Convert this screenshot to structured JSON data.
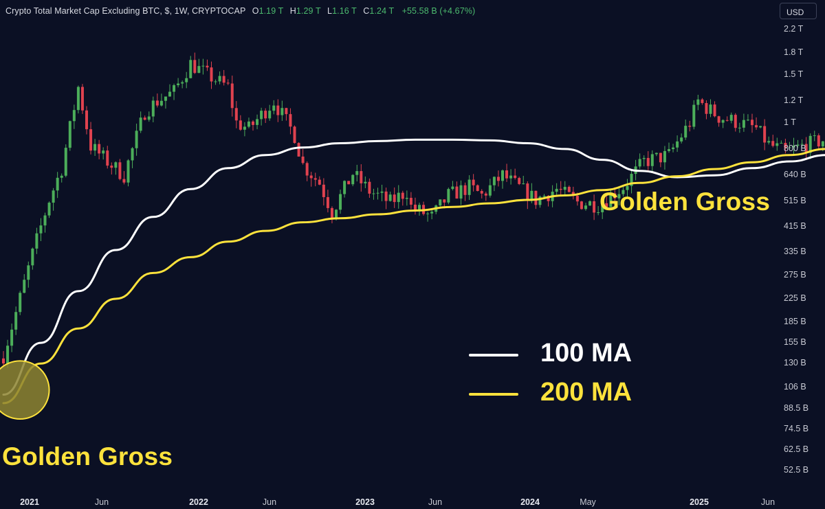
{
  "header": {
    "symbol": "Crypto Total Market Cap Excluding BTC, $, 1W, CRYPTOCAP",
    "open_key": "O",
    "open": "1.19 T",
    "high_key": "H",
    "high": "1.29 T",
    "low_key": "L",
    "low": "1.16 T",
    "close_key": "C",
    "close": "1.24 T",
    "change": "+55.58 B (+4.67%)"
  },
  "currency_button": "USD",
  "colors": {
    "background": "#0b1024",
    "up": "#4cae5a",
    "down": "#e0424f",
    "ma100": "#ffffff",
    "ma200": "#fde23c",
    "highlight_fill": "#8e8531",
    "highlight_stroke": "#fde23c"
  },
  "annotations": {
    "left_label": "Golden Gross",
    "right_label": "Golden Gross"
  },
  "legend": [
    {
      "label": "100 MA",
      "color": "#ffffff"
    },
    {
      "label": "200 MA",
      "color": "#fde23c"
    }
  ],
  "chart_data": {
    "type": "candlestick",
    "title": "Crypto Total Market Cap Excluding BTC, $, 1W, CRYPTOCAP",
    "y_scale": "log",
    "y_unit": "USD",
    "y_ticks": [
      "2.2 T",
      "1.8 T",
      "1.5 T",
      "1.2 T",
      "1 T",
      "800 B",
      "640 B",
      "515 B",
      "415 B",
      "335 B",
      "275 B",
      "225 B",
      "185 B",
      "155 B",
      "130 B",
      "106 B",
      "88.5 B",
      "74.5 B",
      "62.5 B",
      "52.5 B"
    ],
    "x_ticks": [
      {
        "label": "2021",
        "bold": true
      },
      {
        "label": "Jun",
        "bold": false
      },
      {
        "label": "2022",
        "bold": true
      },
      {
        "label": "Jun",
        "bold": false
      },
      {
        "label": "2023",
        "bold": true
      },
      {
        "label": "Jun",
        "bold": false
      },
      {
        "label": "2024",
        "bold": true
      },
      {
        "label": "May",
        "bold": false
      },
      {
        "label": "2025",
        "bold": true
      },
      {
        "label": "Jun",
        "bold": false
      }
    ],
    "price_path": [
      [
        "2020-12-28",
        140
      ],
      [
        "2021-01-18",
        200
      ],
      [
        "2021-02-15",
        330
      ],
      [
        "2021-03-15",
        520
      ],
      [
        "2021-04-05",
        680
      ],
      [
        "2021-05-03",
        1350
      ],
      [
        "2021-05-24",
        820
      ],
      [
        "2021-06-21",
        720
      ],
      [
        "2021-07-19",
        640
      ],
      [
        "2021-08-23",
        1100
      ],
      [
        "2021-09-13",
        1200
      ],
      [
        "2021-10-11",
        1300
      ],
      [
        "2021-11-08",
        1650
      ],
      [
        "2021-12-06",
        1500
      ],
      [
        "2022-01-10",
        1350
      ],
      [
        "2022-01-24",
        1000
      ],
      [
        "2022-02-14",
        950
      ],
      [
        "2022-03-28",
        1200
      ],
      [
        "2022-05-02",
        900
      ],
      [
        "2022-05-16",
        700
      ],
      [
        "2022-06-13",
        600
      ],
      [
        "2022-07-04",
        470
      ],
      [
        "2022-08-08",
        650
      ],
      [
        "2022-09-05",
        560
      ],
      [
        "2022-10-10",
        510
      ],
      [
        "2022-11-07",
        560
      ],
      [
        "2022-11-14",
        490
      ],
      [
        "2022-12-19",
        450
      ],
      [
        "2023-01-16",
        540
      ],
      [
        "2023-02-20",
        580
      ],
      [
        "2023-03-13",
        540
      ],
      [
        "2023-04-17",
        640
      ],
      [
        "2023-06-12",
        520
      ],
      [
        "2023-07-17",
        570
      ],
      [
        "2023-08-21",
        510
      ],
      [
        "2023-09-25",
        500
      ],
      [
        "2023-11-06",
        580
      ],
      [
        "2023-12-11",
        720
      ],
      [
        "2024-01-22",
        760
      ],
      [
        "2024-02-26",
        1000
      ],
      [
        "2024-03-11",
        1200
      ],
      [
        "2024-04-15",
        1050
      ],
      [
        "2024-05-20",
        1000
      ],
      [
        "2024-06-17",
        950
      ],
      [
        "2024-07-08",
        830
      ],
      [
        "2024-08-05",
        780
      ],
      [
        "2024-09-09",
        830
      ],
      [
        "2024-10-14",
        870
      ],
      [
        "2024-11-11",
        1150
      ],
      [
        "2024-12-09",
        1500
      ],
      [
        "2024-12-30",
        1400
      ],
      [
        "2025-01-20",
        1450
      ],
      [
        "2025-02-03",
        1200
      ],
      [
        "2025-02-17",
        1240
      ]
    ],
    "series": [
      {
        "name": "100 MA",
        "points": [
          [
            "2020-12-28",
            100
          ],
          [
            "2021-03-01",
            155
          ],
          [
            "2021-05-03",
            240
          ],
          [
            "2021-07-05",
            340
          ],
          [
            "2021-09-06",
            450
          ],
          [
            "2021-11-08",
            570
          ],
          [
            "2022-01-10",
            680
          ],
          [
            "2022-03-14",
            760
          ],
          [
            "2022-05-16",
            810
          ],
          [
            "2022-07-18",
            840
          ],
          [
            "2022-09-19",
            855
          ],
          [
            "2022-11-21",
            865
          ],
          [
            "2023-01-23",
            865
          ],
          [
            "2023-03-27",
            860
          ],
          [
            "2023-05-29",
            840
          ],
          [
            "2023-07-31",
            800
          ],
          [
            "2023-10-02",
            730
          ],
          [
            "2023-12-04",
            665
          ],
          [
            "2024-02-05",
            630
          ],
          [
            "2024-04-08",
            640
          ],
          [
            "2024-06-10",
            680
          ],
          [
            "2024-08-12",
            720
          ],
          [
            "2024-10-14",
            760
          ],
          [
            "2024-12-16",
            820
          ],
          [
            "2025-02-10",
            880
          ]
        ]
      },
      {
        "name": "200 MA",
        "points": [
          [
            "2020-12-28",
            93
          ],
          [
            "2021-03-01",
            130
          ],
          [
            "2021-05-03",
            175
          ],
          [
            "2021-07-05",
            225
          ],
          [
            "2021-09-06",
            280
          ],
          [
            "2021-11-08",
            320
          ],
          [
            "2022-01-10",
            365
          ],
          [
            "2022-03-14",
            400
          ],
          [
            "2022-05-16",
            430
          ],
          [
            "2022-07-18",
            445
          ],
          [
            "2022-09-19",
            460
          ],
          [
            "2022-11-21",
            475
          ],
          [
            "2023-01-23",
            490
          ],
          [
            "2023-03-27",
            505
          ],
          [
            "2023-05-29",
            520
          ],
          [
            "2023-07-31",
            540
          ],
          [
            "2023-10-02",
            565
          ],
          [
            "2023-12-04",
            600
          ],
          [
            "2024-02-05",
            635
          ],
          [
            "2024-04-08",
            675
          ],
          [
            "2024-06-10",
            715
          ],
          [
            "2024-08-12",
            760
          ],
          [
            "2024-10-14",
            800
          ],
          [
            "2024-12-16",
            840
          ],
          [
            "2025-02-10",
            880
          ]
        ]
      }
    ],
    "highlights": [
      {
        "date": "2021-01-25",
        "value": 104,
        "radius_weeks": 7
      },
      {
        "date": "2025-02-10",
        "value": 880,
        "radius_weeks": 7
      }
    ]
  }
}
